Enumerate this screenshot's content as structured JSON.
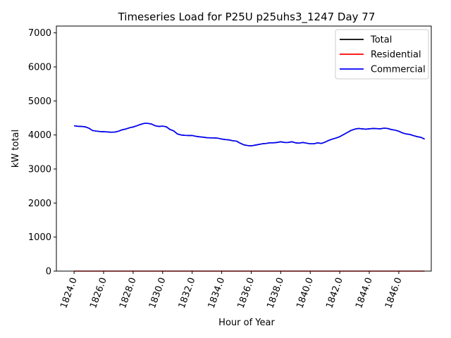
{
  "chart_data": {
    "type": "line",
    "title": "Timeseries Load for P25U p25uhs3_1247  Day 77",
    "xlabel": "Hour of Year",
    "ylabel": "kW total",
    "xlim": [
      1822.8,
      1848.2
    ],
    "ylim": [
      0,
      7200
    ],
    "xticks": [
      1824,
      1826,
      1828,
      1830,
      1832,
      1834,
      1836,
      1838,
      1840,
      1842,
      1844,
      1846
    ],
    "xtick_labels": [
      "1824.0",
      "1826.0",
      "1828.0",
      "1830.0",
      "1832.0",
      "1834.0",
      "1836.0",
      "1838.0",
      "1840.0",
      "1842.0",
      "1844.0",
      "1846.0"
    ],
    "yticks": [
      0,
      1000,
      2000,
      3000,
      4000,
      5000,
      6000,
      7000
    ],
    "ytick_labels": [
      "0",
      "1000",
      "2000",
      "3000",
      "4000",
      "5000",
      "6000",
      "7000"
    ],
    "legend_position": "top-right",
    "x": [
      1824.0,
      1824.25,
      1824.5,
      1824.75,
      1825.0,
      1825.25,
      1825.5,
      1825.75,
      1826.0,
      1826.25,
      1826.5,
      1826.75,
      1827.0,
      1827.25,
      1827.5,
      1827.75,
      1828.0,
      1828.25,
      1828.5,
      1828.75,
      1829.0,
      1829.25,
      1829.5,
      1829.75,
      1830.0,
      1830.25,
      1830.5,
      1830.75,
      1831.0,
      1831.25,
      1831.5,
      1831.75,
      1832.0,
      1832.25,
      1832.5,
      1832.75,
      1833.0,
      1833.25,
      1833.5,
      1833.75,
      1834.0,
      1834.25,
      1834.5,
      1834.75,
      1835.0,
      1835.25,
      1835.5,
      1835.75,
      1836.0,
      1836.25,
      1836.5,
      1836.75,
      1837.0,
      1837.25,
      1837.5,
      1837.75,
      1838.0,
      1838.25,
      1838.5,
      1838.75,
      1839.0,
      1839.25,
      1839.5,
      1839.75,
      1840.0,
      1840.25,
      1840.5,
      1840.75,
      1841.0,
      1841.25,
      1841.5,
      1841.75,
      1842.0,
      1842.25,
      1842.5,
      1842.75,
      1843.0,
      1843.25,
      1843.5,
      1843.75,
      1844.0,
      1844.25,
      1844.5,
      1844.75,
      1845.0,
      1845.25,
      1845.5,
      1845.75,
      1846.0,
      1846.25,
      1846.5,
      1846.75,
      1847.0,
      1847.25,
      1847.5,
      1847.75
    ],
    "series": [
      {
        "name": "Total",
        "color": "#000000",
        "values": [
          4270,
          4255,
          4250,
          4240,
          4200,
          4130,
          4115,
          4100,
          4095,
          4090,
          4080,
          4085,
          4110,
          4150,
          4175,
          4210,
          4235,
          4270,
          4310,
          4340,
          4340,
          4320,
          4270,
          4250,
          4260,
          4240,
          4160,
          4120,
          4030,
          4000,
          3990,
          3985,
          3985,
          3960,
          3945,
          3935,
          3920,
          3915,
          3915,
          3905,
          3880,
          3865,
          3855,
          3830,
          3820,
          3760,
          3710,
          3690,
          3680,
          3700,
          3720,
          3740,
          3750,
          3770,
          3770,
          3780,
          3800,
          3780,
          3780,
          3800,
          3770,
          3760,
          3780,
          3760,
          3740,
          3740,
          3770,
          3750,
          3790,
          3840,
          3880,
          3910,
          3950,
          4010,
          4070,
          4130,
          4170,
          4190,
          4180,
          4170,
          4180,
          4190,
          4185,
          4180,
          4200,
          4190,
          4160,
          4140,
          4110,
          4060,
          4030,
          4015,
          3980,
          3950,
          3930,
          3880
        ]
      },
      {
        "name": "Residential",
        "color": "#ff0000",
        "values": [
          0,
          0,
          0,
          0,
          0,
          0,
          0,
          0,
          0,
          0,
          0,
          0,
          0,
          0,
          0,
          0,
          0,
          0,
          0,
          0,
          0,
          0,
          0,
          0,
          0,
          0,
          0,
          0,
          0,
          0,
          0,
          0,
          0,
          0,
          0,
          0,
          0,
          0,
          0,
          0,
          0,
          0,
          0,
          0,
          0,
          0,
          0,
          0,
          0,
          0,
          0,
          0,
          0,
          0,
          0,
          0,
          0,
          0,
          0,
          0,
          0,
          0,
          0,
          0,
          0,
          0,
          0,
          0,
          0,
          0,
          0,
          0,
          0,
          0,
          0,
          0,
          0,
          0,
          0,
          0,
          0,
          0,
          0,
          0,
          0,
          0,
          0,
          0,
          0,
          0,
          0,
          0,
          0,
          0,
          0,
          0
        ]
      },
      {
        "name": "Commercial",
        "color": "#0000ff",
        "values": [
          4270,
          4255,
          4250,
          4240,
          4200,
          4130,
          4115,
          4100,
          4095,
          4090,
          4080,
          4085,
          4110,
          4150,
          4175,
          4210,
          4235,
          4270,
          4310,
          4340,
          4340,
          4320,
          4270,
          4250,
          4260,
          4240,
          4160,
          4120,
          4030,
          4000,
          3990,
          3985,
          3985,
          3960,
          3945,
          3935,
          3920,
          3915,
          3915,
          3905,
          3880,
          3865,
          3855,
          3830,
          3820,
          3760,
          3710,
          3690,
          3680,
          3700,
          3720,
          3740,
          3750,
          3770,
          3770,
          3780,
          3800,
          3780,
          3780,
          3800,
          3770,
          3760,
          3780,
          3760,
          3740,
          3740,
          3770,
          3750,
          3790,
          3840,
          3880,
          3910,
          3950,
          4010,
          4070,
          4130,
          4170,
          4190,
          4180,
          4170,
          4180,
          4190,
          4185,
          4180,
          4200,
          4190,
          4160,
          4140,
          4110,
          4060,
          4030,
          4015,
          3980,
          3950,
          3930,
          3880
        ]
      }
    ]
  }
}
